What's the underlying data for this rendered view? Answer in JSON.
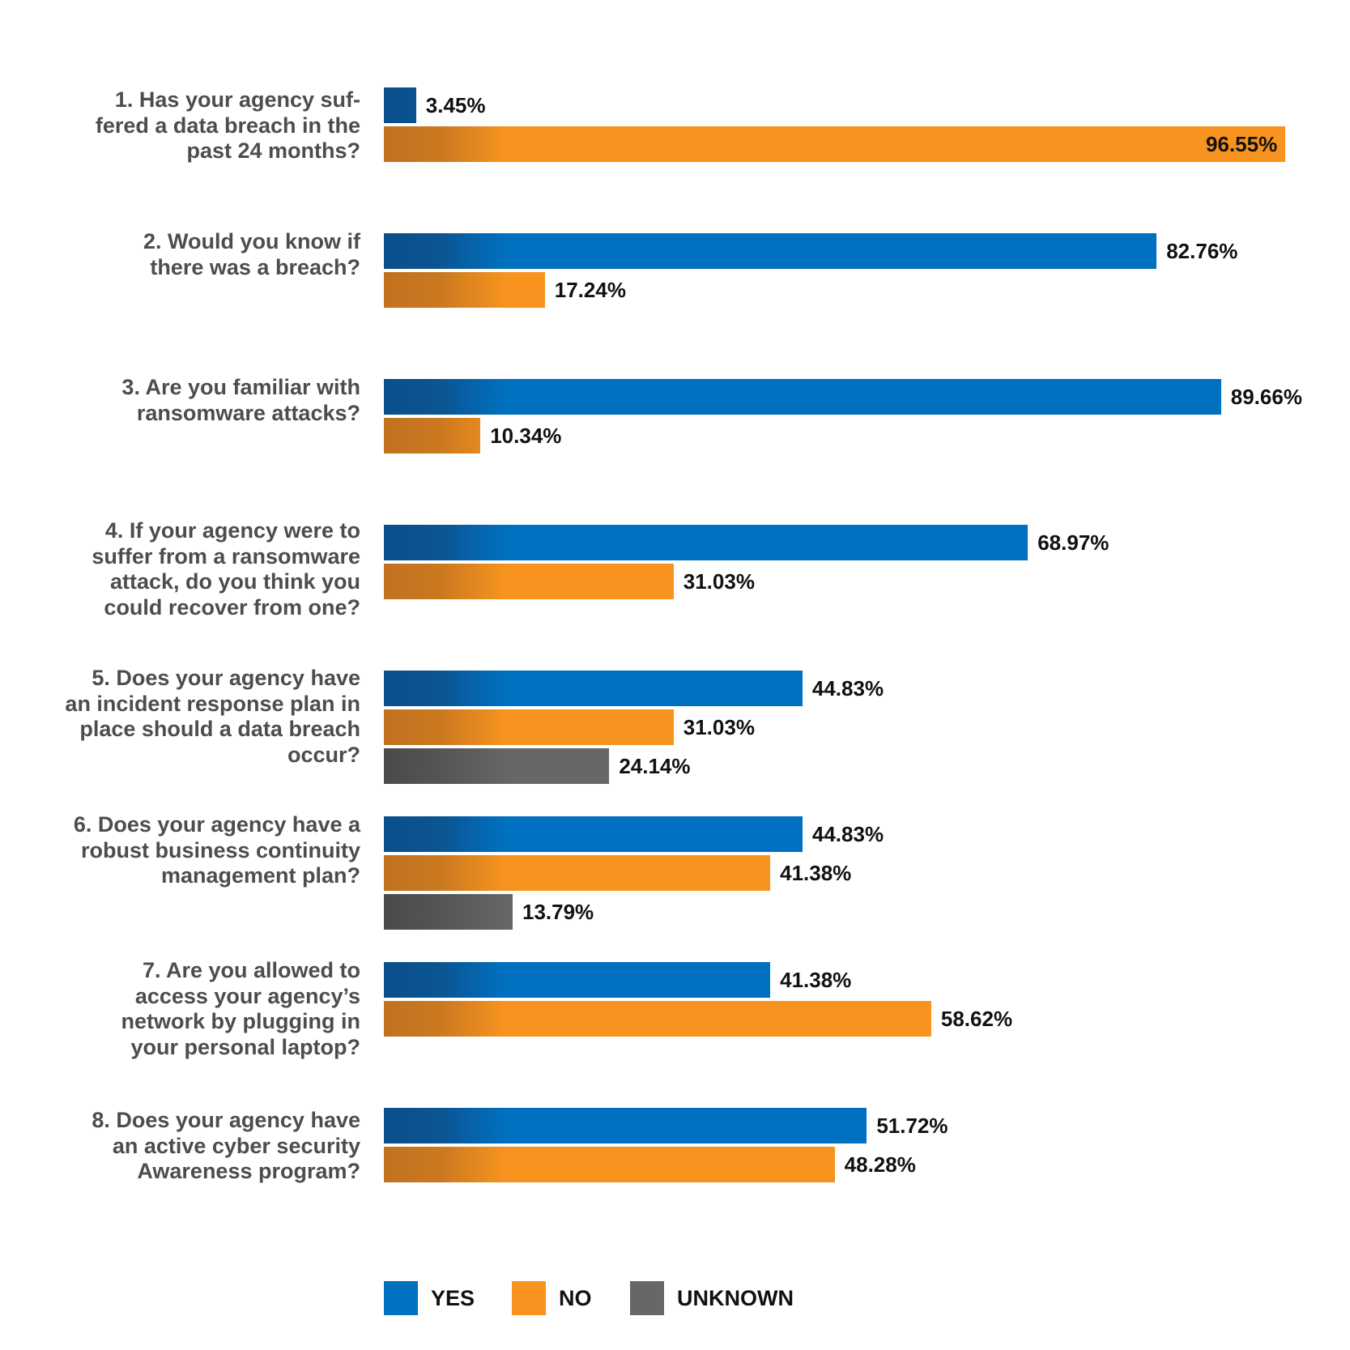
{
  "colors": {
    "yes": "#0070c0",
    "no": "#f7931e",
    "unknown": "#676767"
  },
  "chart_data": {
    "type": "bar",
    "orientation": "horizontal",
    "xlim": [
      0,
      100
    ],
    "unit": "%",
    "grid": false,
    "legend_placement": "bottom",
    "legend": [
      {
        "key": "yes",
        "label": "YES"
      },
      {
        "key": "no",
        "label": "NO"
      },
      {
        "key": "unknown",
        "label": "UNKNOWN"
      }
    ],
    "questions": [
      {
        "lines": [
          "1. Has your agency suf-",
          "fered a data breach in the",
          "past 24 months?"
        ],
        "bars": [
          {
            "series": "yes",
            "value": 3.45,
            "label": "3.45%"
          },
          {
            "series": "no",
            "value": 96.55,
            "label": "96.55%"
          }
        ]
      },
      {
        "lines": [
          "2. Would you know if",
          "there was a breach?"
        ],
        "bars": [
          {
            "series": "yes",
            "value": 82.76,
            "label": "82.76%"
          },
          {
            "series": "no",
            "value": 17.24,
            "label": "17.24%"
          }
        ]
      },
      {
        "lines": [
          "3. Are you familiar with",
          "ransomware attacks?"
        ],
        "bars": [
          {
            "series": "yes",
            "value": 89.66,
            "label": "89.66%"
          },
          {
            "series": "no",
            "value": 10.34,
            "label": "10.34%"
          }
        ]
      },
      {
        "lines": [
          "4. If your agency were to",
          "suffer from a ransomware",
          "attack, do you think you",
          "could recover from one?"
        ],
        "bars": [
          {
            "series": "yes",
            "value": 68.97,
            "label": "68.97%"
          },
          {
            "series": "no",
            "value": 31.03,
            "label": "31.03%"
          }
        ]
      },
      {
        "lines": [
          "5. Does your agency have",
          "an incident response plan in",
          "place should a data breach",
          "occur?"
        ],
        "bars": [
          {
            "series": "yes",
            "value": 44.83,
            "label": "44.83%"
          },
          {
            "series": "no",
            "value": 31.03,
            "label": "31.03%"
          },
          {
            "series": "unknown",
            "value": 24.14,
            "label": "24.14%"
          }
        ]
      },
      {
        "lines": [
          "6. Does your agency have a",
          "robust business continuity",
          "management plan?"
        ],
        "bars": [
          {
            "series": "yes",
            "value": 44.83,
            "label": "44.83%"
          },
          {
            "series": "no",
            "value": 41.38,
            "label": "41.38%"
          },
          {
            "series": "unknown",
            "value": 13.79,
            "label": "13.79%"
          }
        ]
      },
      {
        "lines": [
          "7. Are you allowed to",
          "access your agency’s",
          "network by plugging in",
          "your personal laptop?"
        ],
        "bars": [
          {
            "series": "yes",
            "value": 41.38,
            "label": "41.38%"
          },
          {
            "series": "no",
            "value": 58.62,
            "label": "58.62%"
          }
        ]
      },
      {
        "lines": [
          "8. Does your agency have",
          "an active cyber security",
          "Awareness program?"
        ],
        "bars": [
          {
            "series": "yes",
            "value": 51.72,
            "label": "51.72%"
          },
          {
            "series": "no",
            "value": 48.28,
            "label": "48.28%"
          }
        ]
      }
    ]
  }
}
